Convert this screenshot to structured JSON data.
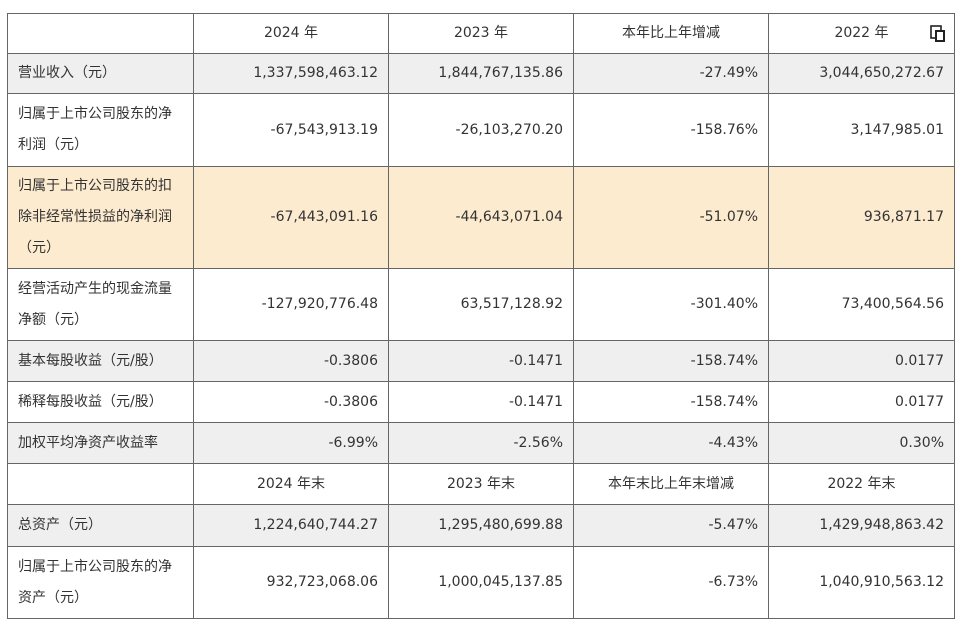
{
  "header": {
    "empty": "",
    "col1": "2024 年",
    "col2": "2023 年",
    "col3": "本年比上年增减",
    "col4": "2022 年"
  },
  "rows_a": [
    {
      "label": "营业收入（元）",
      "v2024": "1,337,598,463.12",
      "v2023": "1,844,767,135.86",
      "chg": "-27.49%",
      "v2022": "3,044,650,272.67"
    },
    {
      "label": "归属于上市公司股东的净利润（元）",
      "v2024": "-67,543,913.19",
      "v2023": "-26,103,270.20",
      "chg": "-158.76%",
      "v2022": "3,147,985.01"
    },
    {
      "label": "归属于上市公司股东的扣除非经常性损益的净利润（元）",
      "v2024": "-67,443,091.16",
      "v2023": "-44,643,071.04",
      "chg": "-51.07%",
      "v2022": "936,871.17"
    },
    {
      "label": "经营活动产生的现金流量净额（元）",
      "v2024": "-127,920,776.48",
      "v2023": "63,517,128.92",
      "chg": "-301.40%",
      "v2022": "73,400,564.56"
    },
    {
      "label": "基本每股收益（元/股）",
      "v2024": "-0.3806",
      "v2023": "-0.1471",
      "chg": "-158.74%",
      "v2022": "0.0177"
    },
    {
      "label": "稀释每股收益（元/股）",
      "v2024": "-0.3806",
      "v2023": "-0.1471",
      "chg": "-158.74%",
      "v2022": "0.0177"
    },
    {
      "label": "加权平均净资产收益率",
      "v2024": "-6.99%",
      "v2023": "-2.56%",
      "chg": "-4.43%",
      "v2022": "0.30%"
    }
  ],
  "header2": {
    "empty": "",
    "col1": "2024 年末",
    "col2": "2023 年末",
    "col3": "本年末比上年末增减",
    "col4": "2022 年末"
  },
  "rows_b": [
    {
      "label": "总资产（元）",
      "v2024": "1,224,640,744.27",
      "v2023": "1,295,480,699.88",
      "chg": "-5.47%",
      "v2022": "1,429,948,863.42"
    },
    {
      "label": "归属于上市公司股东的净资产（元）",
      "v2024": "932,723,068.06",
      "v2023": "1,000,045,137.85",
      "chg": "-6.73%",
      "v2022": "1,040,910,563.12"
    }
  ],
  "colors": {
    "highlight": "#fdebd0",
    "stripe": "#efefef",
    "border": "#666666"
  },
  "icons": {
    "copy": "copy-icon"
  }
}
